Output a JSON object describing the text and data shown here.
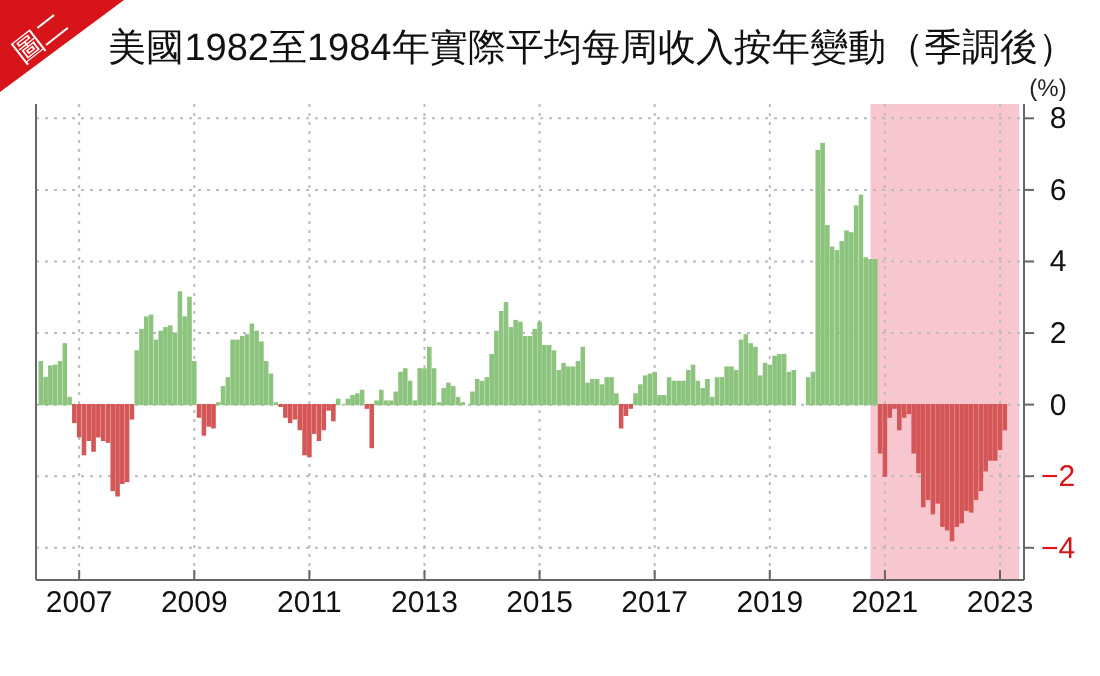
{
  "chart_data": {
    "type": "bar",
    "title": "美國1982至1984年實際平均每周收入按年變動（季調後）",
    "ylabel": "(%)",
    "annotations": [
      "圖二"
    ],
    "x": [
      "2006-05",
      "2006-06",
      "2006-07",
      "2006-08",
      "2006-09",
      "2006-10",
      "2006-11",
      "2006-12",
      "2007-01",
      "2007-02",
      "2007-03",
      "2007-04",
      "2007-05",
      "2007-06",
      "2007-07",
      "2007-08",
      "2007-09",
      "2007-10",
      "2007-11",
      "2007-12",
      "2008-01",
      "2008-02",
      "2008-03",
      "2008-04",
      "2008-05",
      "2008-06",
      "2008-07",
      "2008-08",
      "2008-09",
      "2008-10",
      "2008-11",
      "2008-12",
      "2009-01",
      "2009-02",
      "2009-03",
      "2009-04",
      "2009-05",
      "2009-06",
      "2009-07",
      "2009-08",
      "2009-09",
      "2009-10",
      "2009-11",
      "2009-12",
      "2010-01",
      "2010-02",
      "2010-03",
      "2010-04",
      "2010-05",
      "2010-06",
      "2010-07",
      "2010-08",
      "2010-09",
      "2010-10",
      "2010-11",
      "2010-12",
      "2011-01",
      "2011-02",
      "2011-03",
      "2011-04",
      "2011-05",
      "2011-06",
      "2011-07",
      "2011-08",
      "2011-09",
      "2011-10",
      "2011-11",
      "2011-12",
      "2012-01",
      "2012-02",
      "2012-03",
      "2012-04",
      "2012-05",
      "2012-06",
      "2012-07",
      "2012-08",
      "2012-09",
      "2012-10",
      "2012-11",
      "2012-12",
      "2013-01",
      "2013-02",
      "2013-03",
      "2013-04",
      "2013-05",
      "2013-06",
      "2013-07",
      "2013-08",
      "2013-09",
      "2013-10",
      "2013-11",
      "2013-12",
      "2014-01",
      "2014-02",
      "2014-03",
      "2014-04",
      "2014-05",
      "2014-06",
      "2014-07",
      "2014-08",
      "2014-09",
      "2014-10",
      "2014-11",
      "2014-12",
      "2015-01",
      "2015-02",
      "2015-03",
      "2015-04",
      "2015-05",
      "2015-06",
      "2015-07",
      "2015-08",
      "2015-09",
      "2015-10",
      "2015-11",
      "2015-12",
      "2016-01",
      "2016-02",
      "2016-03",
      "2016-04",
      "2016-05",
      "2016-06",
      "2016-07",
      "2016-08",
      "2016-09",
      "2016-10",
      "2016-11",
      "2016-12",
      "2017-01",
      "2017-02",
      "2017-03",
      "2017-04",
      "2017-05",
      "2017-06",
      "2017-07",
      "2017-08",
      "2017-09",
      "2017-10",
      "2017-11",
      "2017-12",
      "2018-01",
      "2018-02",
      "2018-03",
      "2018-04",
      "2018-05",
      "2018-06",
      "2018-07",
      "2018-08",
      "2018-09",
      "2018-10",
      "2018-11",
      "2018-12",
      "2019-01",
      "2019-02",
      "2019-03",
      "2019-04",
      "2019-05",
      "2019-06",
      "2019-07",
      "2019-08",
      "2019-09",
      "2019-10",
      "2019-11",
      "2019-12",
      "2020-01",
      "2020-02",
      "2020-03",
      "2020-04",
      "2020-05",
      "2020-06",
      "2020-07",
      "2020-08",
      "2020-09",
      "2020-10",
      "2020-11",
      "2020-12",
      "2021-01",
      "2021-02",
      "2021-03",
      "2021-04",
      "2021-05",
      "2021-06",
      "2021-07",
      "2021-08",
      "2021-09",
      "2021-10",
      "2021-11",
      "2021-12",
      "2022-01",
      "2022-02",
      "2022-03",
      "2022-04",
      "2022-05",
      "2022-06",
      "2022-07",
      "2022-08",
      "2022-09",
      "2022-10",
      "2022-11",
      "2022-12",
      "2023-01",
      "2023-02"
    ],
    "values": [
      1.2,
      0.76,
      1.08,
      1.1,
      1.2,
      1.7,
      0.2,
      -0.5,
      -0.9,
      -1.4,
      -1.0,
      -1.3,
      -0.9,
      -1.0,
      -1.05,
      -2.4,
      -2.55,
      -2.2,
      -2.15,
      -0.4,
      1.5,
      2.1,
      2.45,
      2.5,
      1.8,
      2.05,
      2.15,
      2.2,
      2.0,
      3.15,
      2.45,
      3.0,
      1.2,
      -0.35,
      -0.85,
      -0.6,
      -0.65,
      0.05,
      0.5,
      0.75,
      1.8,
      1.8,
      1.9,
      1.95,
      2.25,
      2.05,
      1.75,
      1.2,
      0.85,
      0.05,
      -0.05,
      -0.35,
      -0.5,
      -0.4,
      -0.7,
      -1.4,
      -1.45,
      -0.8,
      -1.0,
      -0.7,
      -0.15,
      -0.45,
      0.15,
      null,
      0.15,
      0.25,
      0.3,
      0.4,
      -0.1,
      -1.2,
      0.1,
      0.4,
      0.1,
      0.1,
      0.35,
      0.9,
      1.0,
      0.65,
      0.1,
      1.0,
      1.0,
      1.6,
      1.0,
      0.05,
      0.45,
      0.6,
      0.5,
      0.2,
      0.05,
      0,
      0.35,
      0.7,
      0.65,
      0.75,
      1.4,
      2.05,
      2.6,
      2.85,
      2.15,
      2.35,
      2.3,
      1.9,
      1.9,
      2.1,
      2.3,
      1.65,
      1.65,
      1.5,
      0.95,
      1.15,
      1.05,
      1.05,
      1.2,
      1.6,
      0.6,
      0.7,
      0.7,
      0.55,
      0.75,
      0.75,
      0.3,
      -0.65,
      -0.3,
      -0.1,
      0.3,
      0.55,
      0.8,
      0.85,
      0.9,
      0.25,
      0.25,
      0.75,
      0.65,
      0.65,
      0.65,
      0.95,
      1.1,
      0.65,
      0.45,
      0.7,
      0.2,
      0.75,
      0.75,
      1.05,
      1.05,
      0.95,
      1.8,
      1.95,
      1.7,
      1.6,
      0.8,
      1.15,
      1.1,
      1.35,
      1.4,
      1.4,
      0.9,
      0.95,
      0,
      0,
      0.75,
      0.9,
      7.1,
      7.3,
      5.0,
      4.4,
      4.3,
      4.55,
      4.85,
      4.8,
      5.55,
      5.85,
      4.1,
      4.05,
      4.05,
      -1.35,
      -2.0,
      -0.35,
      -0.1,
      -0.7,
      -0.35,
      -0.25,
      -1.35,
      -1.9,
      -2.85,
      -2.65,
      -3.05,
      -2.75,
      -3.4,
      -3.5,
      -3.8,
      -3.4,
      -3.3,
      -2.95,
      -3.0,
      -2.65,
      -2.4,
      -1.85,
      -1.55,
      -1.55,
      -1.25,
      -0.7
    ],
    "colors": [
      "#8cc47e",
      "#8cc47e",
      "#8cc47e",
      "#8cc47e",
      "#8cc47e",
      "#8cc47e",
      "#8cc47e",
      "#d45656",
      "#d45656",
      "#d45656",
      "#d45656",
      "#d45656",
      "#d45656",
      "#d45656",
      "#d45656",
      "#d45656",
      "#d45656",
      "#d45656",
      "#d45656",
      "#d45656",
      "#8cc47e",
      "#8cc47e",
      "#8cc47e",
      "#8cc47e",
      "#8cc47e",
      "#8cc47e",
      "#8cc47e",
      "#8cc47e",
      "#8cc47e",
      "#8cc47e",
      "#8cc47e",
      "#8cc47e",
      "#8cc47e",
      "#d45656",
      "#d45656",
      "#d45656",
      "#d45656",
      "#8cc47e",
      "#8cc47e",
      "#8cc47e",
      "#8cc47e",
      "#8cc47e",
      "#8cc47e",
      "#8cc47e",
      "#8cc47e",
      "#8cc47e",
      "#8cc47e",
      "#8cc47e",
      "#8cc47e",
      "#8cc47e",
      "#d45656",
      "#d45656",
      "#d45656",
      "#d45656",
      "#d45656",
      "#d45656",
      "#d45656",
      "#d45656",
      "#d45656",
      "#d45656",
      "#d45656",
      "#d45656",
      "#8cc47e",
      "#8cc47e",
      "#8cc47e",
      "#8cc47e",
      "#8cc47e",
      "#8cc47e",
      "#d45656",
      "#d45656",
      "#8cc47e",
      "#8cc47e",
      "#8cc47e",
      "#8cc47e",
      "#8cc47e",
      "#8cc47e",
      "#8cc47e",
      "#8cc47e",
      "#8cc47e",
      "#8cc47e",
      "#8cc47e",
      "#8cc47e",
      "#8cc47e",
      "#8cc47e",
      "#8cc47e",
      "#8cc47e",
      "#8cc47e",
      "#8cc47e",
      "#8cc47e",
      "#8cc47e",
      "#8cc47e",
      "#8cc47e",
      "#8cc47e",
      "#8cc47e",
      "#8cc47e",
      "#8cc47e",
      "#8cc47e",
      "#8cc47e",
      "#8cc47e",
      "#8cc47e",
      "#8cc47e",
      "#8cc47e",
      "#8cc47e",
      "#8cc47e",
      "#8cc47e",
      "#8cc47e",
      "#8cc47e",
      "#8cc47e",
      "#8cc47e",
      "#8cc47e",
      "#8cc47e",
      "#8cc47e",
      "#8cc47e",
      "#8cc47e",
      "#8cc47e",
      "#8cc47e",
      "#8cc47e",
      "#8cc47e",
      "#8cc47e",
      "#8cc47e",
      "#8cc47e",
      "#d45656",
      "#d45656",
      "#d45656",
      "#8cc47e",
      "#8cc47e",
      "#8cc47e",
      "#8cc47e",
      "#8cc47e",
      "#8cc47e",
      "#8cc47e",
      "#8cc47e",
      "#8cc47e",
      "#8cc47e",
      "#8cc47e",
      "#8cc47e",
      "#8cc47e",
      "#8cc47e",
      "#8cc47e",
      "#8cc47e",
      "#8cc47e",
      "#8cc47e",
      "#8cc47e",
      "#8cc47e",
      "#8cc47e",
      "#8cc47e",
      "#8cc47e",
      "#8cc47e",
      "#8cc47e",
      "#8cc47e",
      "#8cc47e",
      "#8cc47e",
      "#8cc47e",
      "#8cc47e",
      "#8cc47e",
      "#8cc47e",
      "#8cc47e",
      "#8cc47e",
      "#8cc47e",
      "#8cc47e",
      "#8cc47e",
      "#8cc47e",
      "#8cc47e",
      "#8cc47e",
      "#8cc47e",
      "#8cc47e",
      "#8cc47e",
      "#8cc47e",
      "#8cc47e",
      "#8cc47e",
      "#8cc47e",
      "#8cc47e",
      "#8cc47e",
      "#8cc47e",
      "#8cc47e",
      "#d45656",
      "#d45656",
      "#d45656",
      "#d45656",
      "#d45656",
      "#d45656",
      "#d45656",
      "#d45656",
      "#d45656",
      "#d45656",
      "#d45656",
      "#d45656",
      "#d45656",
      "#d45656",
      "#d45656",
      "#d45656",
      "#d45656",
      "#d45656",
      "#d45656",
      "#d45656",
      "#d45656",
      "#d45656",
      "#d45656",
      "#d45656",
      "#d45656",
      "#d45656",
      "#d45656"
    ],
    "xlim": [
      "2006-04",
      "2023-06"
    ],
    "xticks": [
      "2007",
      "2009",
      "2011",
      "2013",
      "2015",
      "2017",
      "2019",
      "2021",
      "2023"
    ],
    "ylim": [
      -4.9,
      8.4
    ],
    "yticks": [
      -4,
      -2,
      0,
      2,
      4,
      6,
      8
    ],
    "bands": [
      {
        "axis": "x",
        "from": "2020-10",
        "to": "2023-05",
        "color": "#f4b3bf"
      }
    ],
    "grid": true
  }
}
